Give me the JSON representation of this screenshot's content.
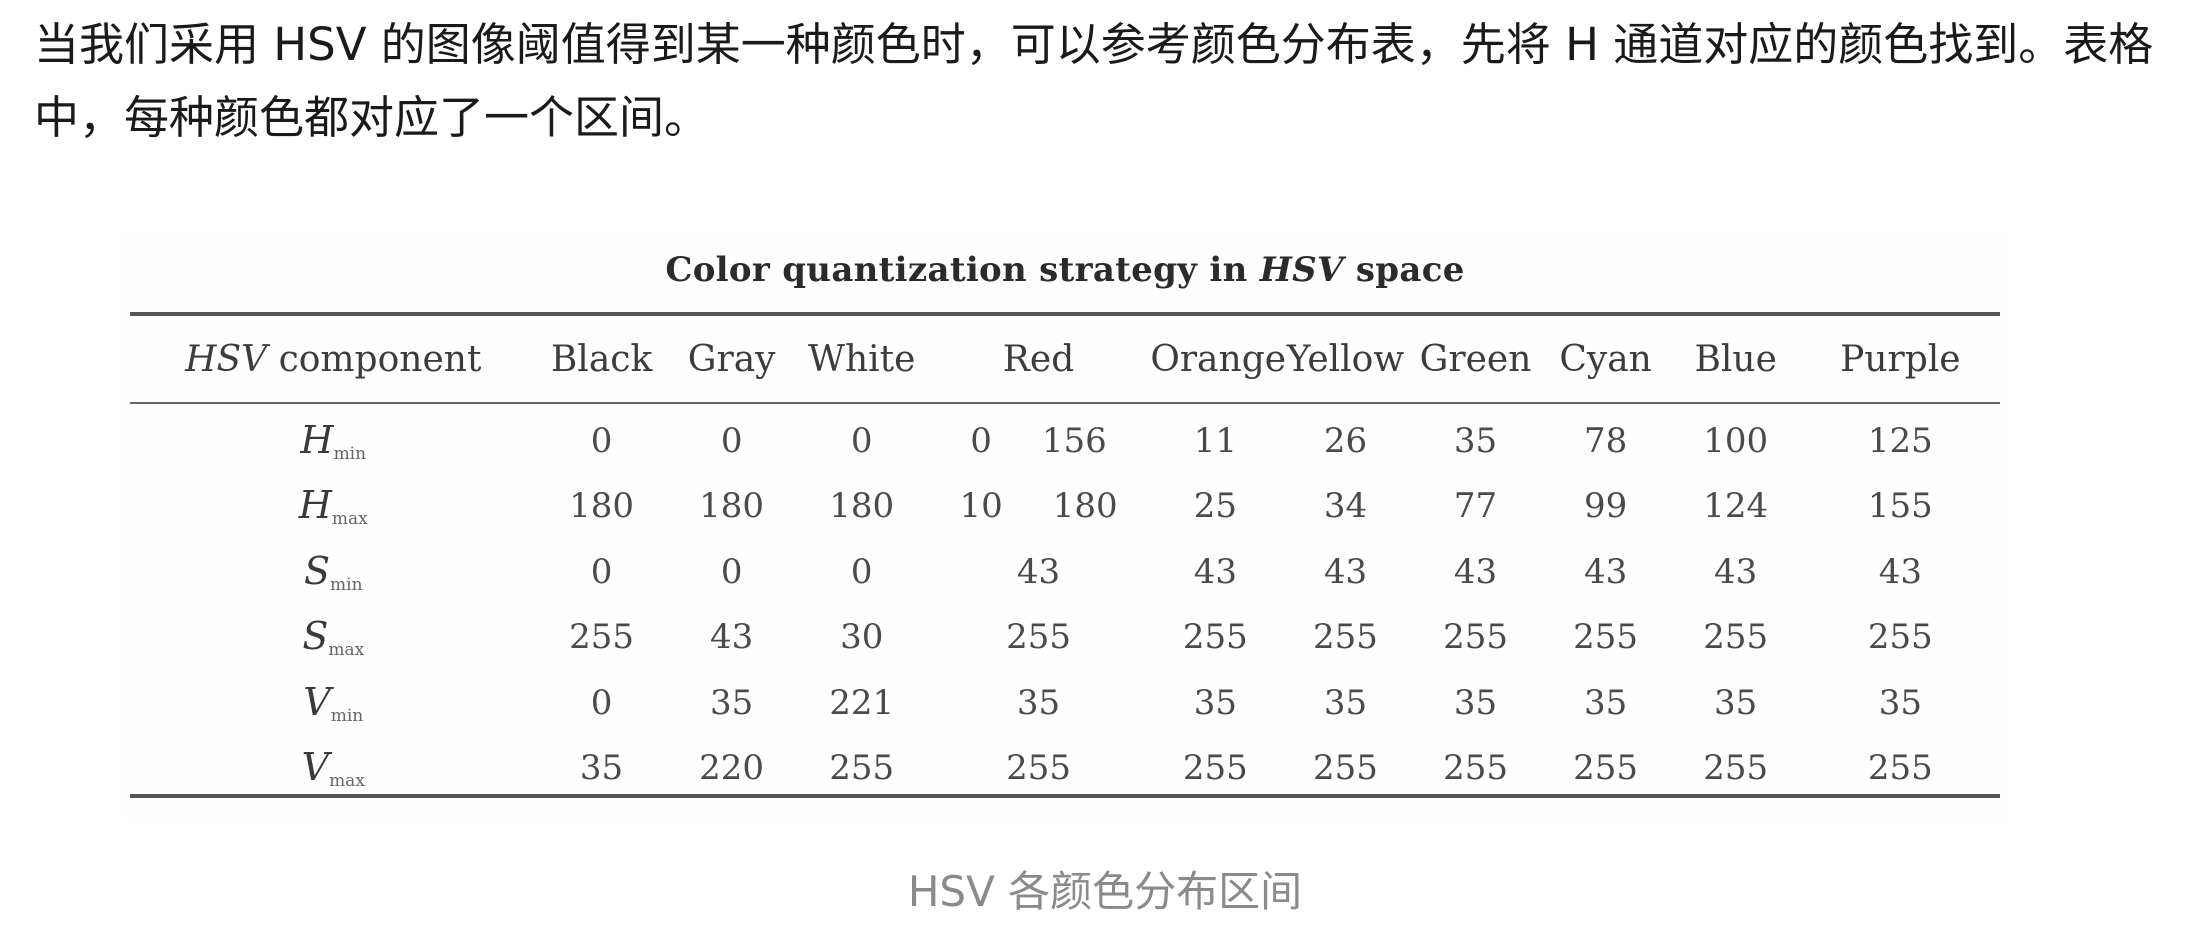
{
  "intro_text": "当我们采用 HSV 的图像阈值得到某一种颜色时，可以参考颜色分布表，先将 H 通道对应的颜色找到。表格中，每种颜色都对应了一个区间。",
  "table": {
    "title_prefix": "Color quantization strategy in ",
    "title_em": "HSV",
    "title_suffix": " space",
    "header_component_em": "HSV",
    "header_component_rest": " component",
    "columns": [
      "Black",
      "Gray",
      "White",
      "Red",
      "Orange",
      "Yellow",
      "Green",
      "Cyan",
      "Blue",
      "Purple"
    ],
    "rows": [
      {
        "param": "H",
        "sub": "min",
        "black": "0",
        "gray": "0",
        "white": "0",
        "red_a": "0",
        "red_b": "156",
        "orange": "11",
        "yellow": "26",
        "green": "35",
        "cyan": "78",
        "blue": "100",
        "purple": "125"
      },
      {
        "param": "H",
        "sub": "max",
        "black": "180",
        "gray": "180",
        "white": "180",
        "red_a": "10",
        "red_b": "180",
        "orange": "25",
        "yellow": "34",
        "green": "77",
        "cyan": "99",
        "blue": "124",
        "purple": "155"
      },
      {
        "param": "S",
        "sub": "min",
        "black": "0",
        "gray": "0",
        "white": "0",
        "red": "43",
        "orange": "43",
        "yellow": "43",
        "green": "43",
        "cyan": "43",
        "blue": "43",
        "purple": "43"
      },
      {
        "param": "S",
        "sub": "max",
        "black": "255",
        "gray": "43",
        "white": "30",
        "red": "255",
        "orange": "255",
        "yellow": "255",
        "green": "255",
        "cyan": "255",
        "blue": "255",
        "purple": "255"
      },
      {
        "param": "V",
        "sub": "min",
        "black": "0",
        "gray": "35",
        "white": "221",
        "red": "35",
        "orange": "35",
        "yellow": "35",
        "green": "35",
        "cyan": "35",
        "blue": "35",
        "purple": "35"
      },
      {
        "param": "V",
        "sub": "max",
        "black": "35",
        "gray": "220",
        "white": "255",
        "red": "255",
        "orange": "255",
        "yellow": "255",
        "green": "255",
        "cyan": "255",
        "blue": "255",
        "purple": "255"
      }
    ]
  },
  "caption": "HSV 各颜色分布区间"
}
